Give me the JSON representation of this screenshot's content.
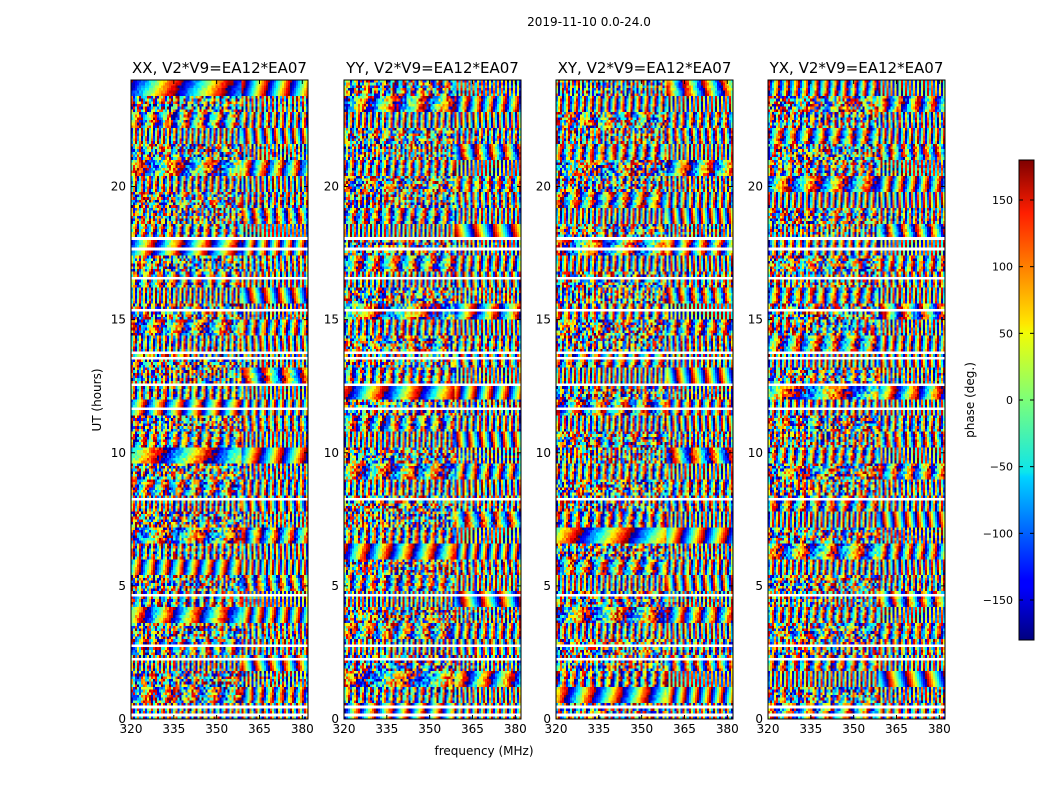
{
  "figure": {
    "suptitle": "2019-11-10 0.0-24.0"
  },
  "chart_data": {
    "type": "heatmap",
    "panels": [
      {
        "title": "XX, V2*V9=EA12*EA07"
      },
      {
        "title": "YY, V2*V9=EA12*EA07"
      },
      {
        "title": "XY, V2*V9=EA12*EA07"
      },
      {
        "title": "YX, V2*V9=EA12*EA07"
      }
    ],
    "xlabel": "frequency (MHz)",
    "ylabel": "UT (hours)",
    "xlim": [
      320,
      382
    ],
    "ylim": [
      0,
      24
    ],
    "x_ticks": [
      320,
      335,
      350,
      365,
      380
    ],
    "y_ticks": [
      0,
      5,
      10,
      15,
      20
    ],
    "colorbar": {
      "label": "phase (deg.)",
      "range": [
        -180,
        180
      ],
      "ticks": [
        -150,
        -100,
        -50,
        0,
        50,
        100,
        150
      ],
      "colormap": "jet"
    }
  }
}
